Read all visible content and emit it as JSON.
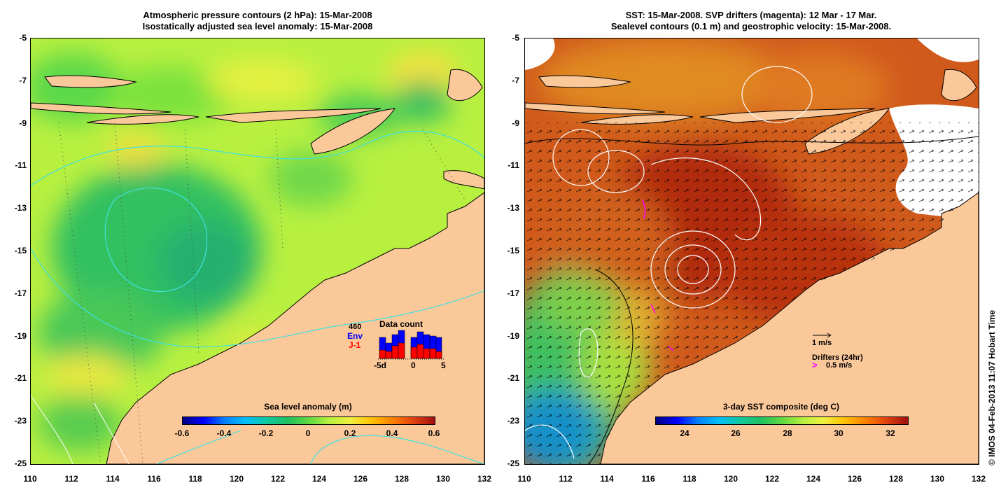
{
  "left_panel": {
    "title_line1": "Atmospheric pressure contours (2 hPa): 15-Mar-2008",
    "title_line2": "Isostatically adjusted sea level anomaly: 15-Mar-2008",
    "colorbar": {
      "title": "Sea level anomaly (m)",
      "ticks": [
        "-0.6",
        "-0.4",
        "-0.2",
        "0",
        "0.2",
        "0.4",
        "0.6"
      ],
      "range": [
        -0.6,
        0.6
      ]
    },
    "data_count": {
      "title": "Data count",
      "total": "460",
      "series1": "Env",
      "series2": "J-1",
      "x_min": "-5d",
      "x_mid": "0",
      "x_max": "5",
      "env_colour": "#0000ff",
      "j1_colour": "#ff0000"
    }
  },
  "right_panel": {
    "title_line1": "SST: 15-Mar-2008. SVP drifters (magenta): 12 Mar - 17 Mar.",
    "title_line2": "Sealevel contours (0.1 m) and geostrophic velocity: 15-Mar-2008.",
    "colorbar": {
      "title": "3-day SST composite (deg C)",
      "ticks": [
        "24",
        "26",
        "28",
        "30",
        "32"
      ],
      "range": [
        22.8,
        32.6
      ]
    },
    "velocity_legend": "1 m/s",
    "drifter_legend_title": "Drifters (24hr)",
    "drifter_legend_value": "0.5 m/s",
    "drifter_colour": "#ff00ff"
  },
  "axes": {
    "lat_ticks": [
      "-5",
      "-7",
      "-9",
      "-11",
      "-13",
      "-15",
      "-17",
      "-19",
      "-21",
      "-23",
      "-25"
    ],
    "lon_ticks": [
      "110",
      "112",
      "114",
      "116",
      "118",
      "120",
      "122",
      "124",
      "126",
      "128",
      "130",
      "132"
    ],
    "lat_range": [
      -25,
      -5
    ],
    "lon_range": [
      110,
      132
    ]
  },
  "credit": "© IMOS 04-Feb-2013 11:07 Hobart Time",
  "colors": {
    "land": "#fbc89a",
    "sla_main": "#b8f040",
    "sla_low": "#30c860",
    "sst_warm": "#c83c14",
    "sst_cool": "#20b870"
  }
}
